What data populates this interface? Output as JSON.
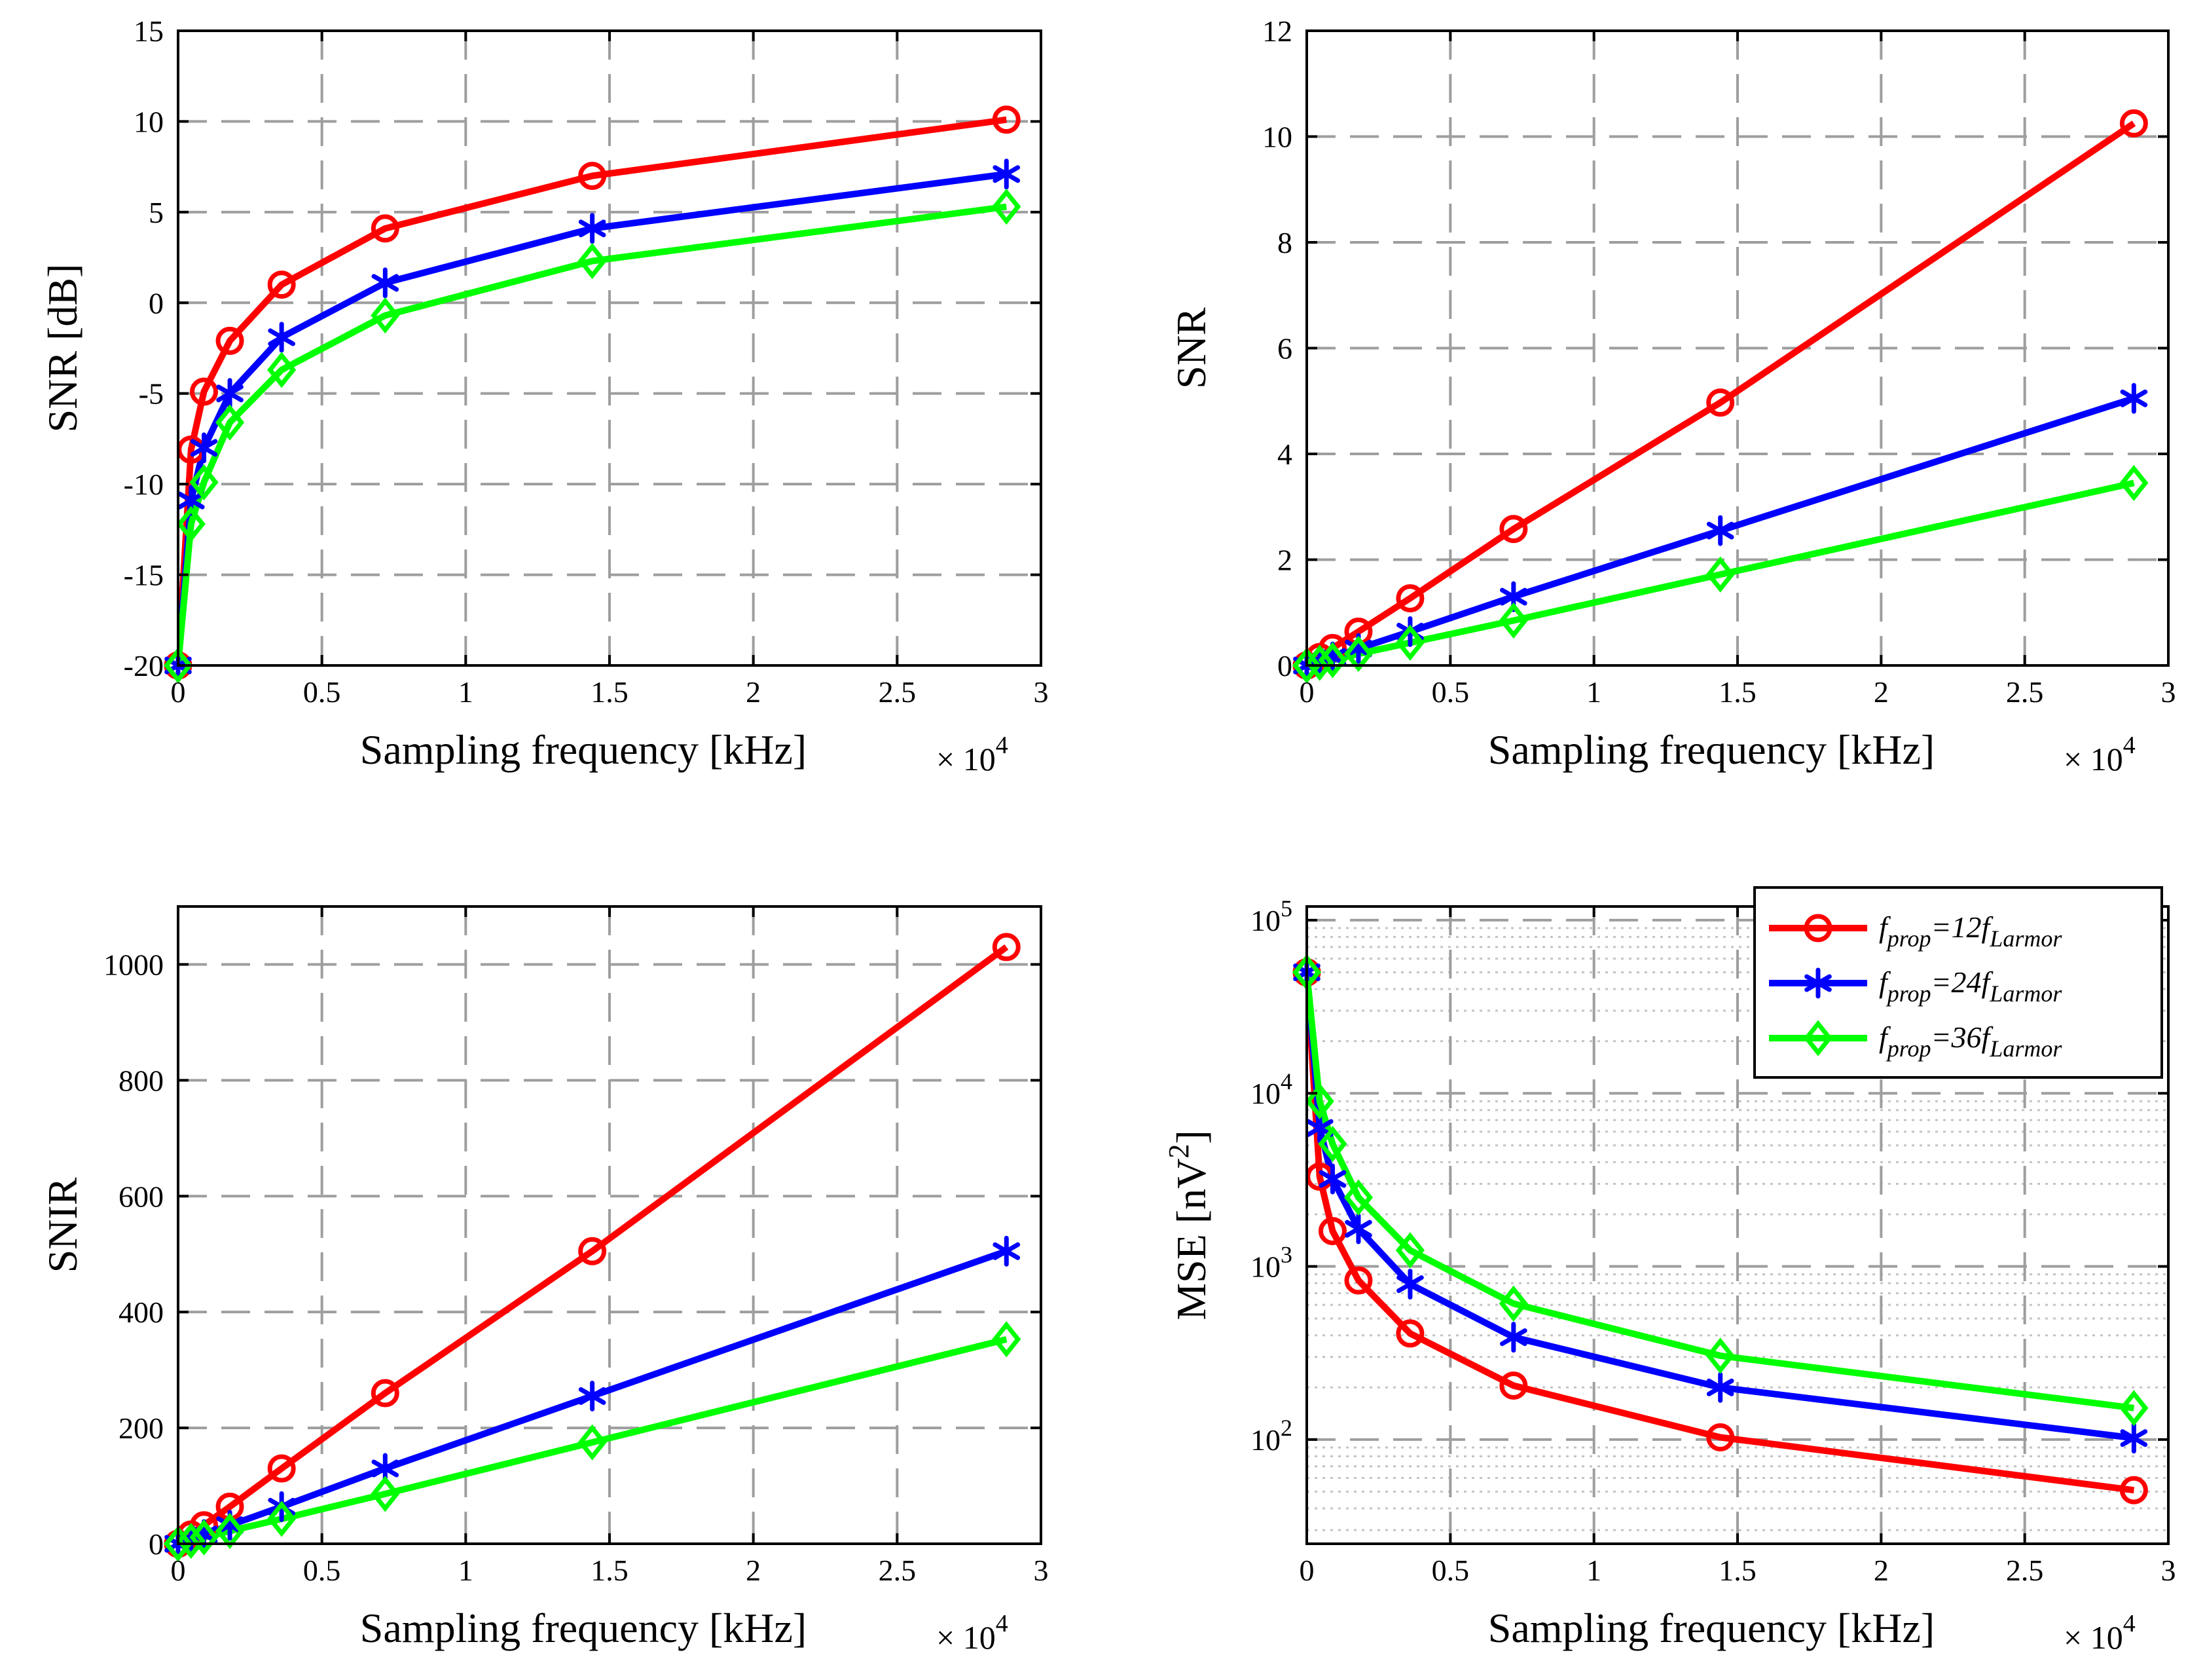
{
  "colors": {
    "red": "#ff0000",
    "blue": "#0000ff",
    "green": "#00ff00",
    "grid": "#9e9e9e",
    "minor_grid": "#c4c4c4",
    "axes": "#000000"
  },
  "legend": {
    "entries": [
      {
        "marker": "circle",
        "color": "#ff0000",
        "sub": "prop",
        "mid": "=12f",
        "sub2": "Larmor",
        "f": "f"
      },
      {
        "marker": "asterisk",
        "color": "#0000ff",
        "sub": "prop",
        "mid": "=24f",
        "sub2": "Larmor",
        "f": "f"
      },
      {
        "marker": "diamond",
        "color": "#00ff00",
        "sub": "prop",
        "mid": "=36f",
        "sub2": "Larmor",
        "f": "f"
      }
    ]
  },
  "chart_data": [
    {
      "type": "line",
      "xlabel": "Sampling frequency [kHz]",
      "ylabel": "SNR [dB]",
      "x_exponent": "× 10",
      "x_exponent_power": "4",
      "xlim": [
        0,
        30000
      ],
      "ylim": [
        -20,
        15
      ],
      "xticks": [
        0,
        5000,
        10000,
        15000,
        20000,
        25000,
        30000
      ],
      "xtick_labels": [
        "0",
        "0.5",
        "1",
        "1.5",
        "2",
        "2.5",
        "3"
      ],
      "yticks": [
        -20,
        -15,
        -10,
        -5,
        0,
        5,
        10,
        15
      ],
      "ytick_labels": [
        "-20",
        "-15",
        "-10",
        "-5",
        "0",
        "5",
        "10",
        "15"
      ],
      "grid": true,
      "series": [
        {
          "color": "#ff0000",
          "marker": "circle",
          "x": [
            0,
            450,
            900,
            1800,
            3600,
            7200,
            14400,
            28800
          ],
          "y": [
            -20,
            -8.1,
            -4.9,
            -2.1,
            1.0,
            4.1,
            7.0,
            10.1
          ]
        },
        {
          "color": "#0000ff",
          "marker": "asterisk",
          "x": [
            0,
            450,
            900,
            1800,
            3600,
            7200,
            14400,
            28800
          ],
          "y": [
            -20,
            -10.9,
            -8.0,
            -5.0,
            -1.9,
            1.1,
            4.1,
            7.1
          ]
        },
        {
          "color": "#00ff00",
          "marker": "diamond",
          "x": [
            0,
            450,
            900,
            1800,
            3600,
            7200,
            14400,
            28800
          ],
          "y": [
            -20,
            -12.2,
            -9.9,
            -6.6,
            -3.7,
            -0.7,
            2.3,
            5.3
          ]
        }
      ]
    },
    {
      "type": "line",
      "xlabel": "Sampling frequency [kHz]",
      "ylabel": "SNR",
      "x_exponent": "× 10",
      "x_exponent_power": "4",
      "xlim": [
        0,
        30000
      ],
      "ylim": [
        0,
        12
      ],
      "xticks": [
        0,
        5000,
        10000,
        15000,
        20000,
        25000,
        30000
      ],
      "xtick_labels": [
        "0",
        "0.5",
        "1",
        "1.5",
        "2",
        "2.5",
        "3"
      ],
      "yticks": [
        0,
        2,
        4,
        6,
        8,
        10,
        12
      ],
      "ytick_labels": [
        "0",
        "2",
        "4",
        "6",
        "8",
        "10",
        "12"
      ],
      "grid": true,
      "series": [
        {
          "color": "#ff0000",
          "marker": "circle",
          "x": [
            0,
            450,
            900,
            1800,
            3600,
            7200,
            14400,
            28800
          ],
          "y": [
            0,
            0.16,
            0.33,
            0.64,
            1.27,
            2.58,
            4.97,
            10.25
          ]
        },
        {
          "color": "#0000ff",
          "marker": "asterisk",
          "x": [
            0,
            450,
            900,
            1800,
            3600,
            7200,
            14400,
            28800
          ],
          "y": [
            0,
            0.08,
            0.16,
            0.32,
            0.64,
            1.3,
            2.55,
            5.05
          ]
        },
        {
          "color": "#00ff00",
          "marker": "diamond",
          "x": [
            0,
            450,
            900,
            1800,
            3600,
            7200,
            14400,
            28800
          ],
          "y": [
            0,
            0.05,
            0.1,
            0.22,
            0.43,
            0.85,
            1.72,
            3.45
          ]
        }
      ]
    },
    {
      "type": "line",
      "xlabel": "Sampling frequency [kHz]",
      "ylabel": "SNIR",
      "x_exponent": "× 10",
      "x_exponent_power": "4",
      "xlim": [
        0,
        30000
      ],
      "ylim": [
        0,
        1100
      ],
      "xticks": [
        0,
        5000,
        10000,
        15000,
        20000,
        25000,
        30000
      ],
      "xtick_labels": [
        "0",
        "0.5",
        "1",
        "1.5",
        "2",
        "2.5",
        "3"
      ],
      "yticks": [
        0,
        200,
        400,
        600,
        800,
        1000
      ],
      "ytick_labels": [
        "0",
        "200",
        "400",
        "600",
        "800",
        "1000"
      ],
      "grid": true,
      "series": [
        {
          "color": "#ff0000",
          "marker": "circle",
          "x": [
            0,
            450,
            900,
            1800,
            3600,
            7200,
            14400,
            28800
          ],
          "y": [
            0,
            16,
            32,
            64,
            130,
            260,
            505,
            1030
          ]
        },
        {
          "color": "#0000ff",
          "marker": "asterisk",
          "x": [
            0,
            450,
            900,
            1800,
            3600,
            7200,
            14400,
            28800
          ],
          "y": [
            0,
            8,
            16,
            32,
            64,
            130,
            255,
            505
          ]
        },
        {
          "color": "#00ff00",
          "marker": "diamond",
          "x": [
            0,
            450,
            900,
            1800,
            3600,
            7200,
            14400,
            28800
          ],
          "y": [
            0,
            5,
            11,
            22,
            43,
            86,
            175,
            353
          ]
        }
      ]
    },
    {
      "type": "line",
      "xlabel": "Sampling frequency [kHz]",
      "ylabel": "MSE [nV",
      "ylabel_sup": "2",
      "ylabel_end": "]",
      "x_exponent": "× 10",
      "x_exponent_power": "4",
      "xlim": [
        0,
        30000
      ],
      "ylim": [
        25,
        120000
      ],
      "yscale": "log",
      "xticks": [
        0,
        5000,
        10000,
        15000,
        20000,
        25000,
        30000
      ],
      "xtick_labels": [
        "0",
        "0.5",
        "1",
        "1.5",
        "2",
        "2.5",
        "3"
      ],
      "yticks": [
        100,
        1000,
        10000,
        100000
      ],
      "ytick_bases": [
        "10",
        "10",
        "10",
        "10"
      ],
      "ytick_powers": [
        "2",
        "3",
        "4",
        "5"
      ],
      "grid": true,
      "minor_grid": true,
      "legend_position": "top-right",
      "series": [
        {
          "color": "#ff0000",
          "marker": "circle",
          "x": [
            0,
            450,
            900,
            1800,
            3600,
            7200,
            14400,
            28800
          ],
          "y": [
            50000,
            3300,
            1600,
            830,
            410,
            205,
            103,
            51
          ]
        },
        {
          "color": "#0000ff",
          "marker": "asterisk",
          "x": [
            0,
            450,
            900,
            1800,
            3600,
            7200,
            14400,
            28800
          ],
          "y": [
            50000,
            6300,
            3200,
            1650,
            790,
            390,
            200,
            102
          ]
        },
        {
          "color": "#00ff00",
          "marker": "diamond",
          "x": [
            0,
            450,
            900,
            1800,
            3600,
            7200,
            14400,
            28800
          ],
          "y": [
            50000,
            9000,
            5100,
            2500,
            1240,
            610,
            305,
            152
          ]
        }
      ]
    }
  ]
}
